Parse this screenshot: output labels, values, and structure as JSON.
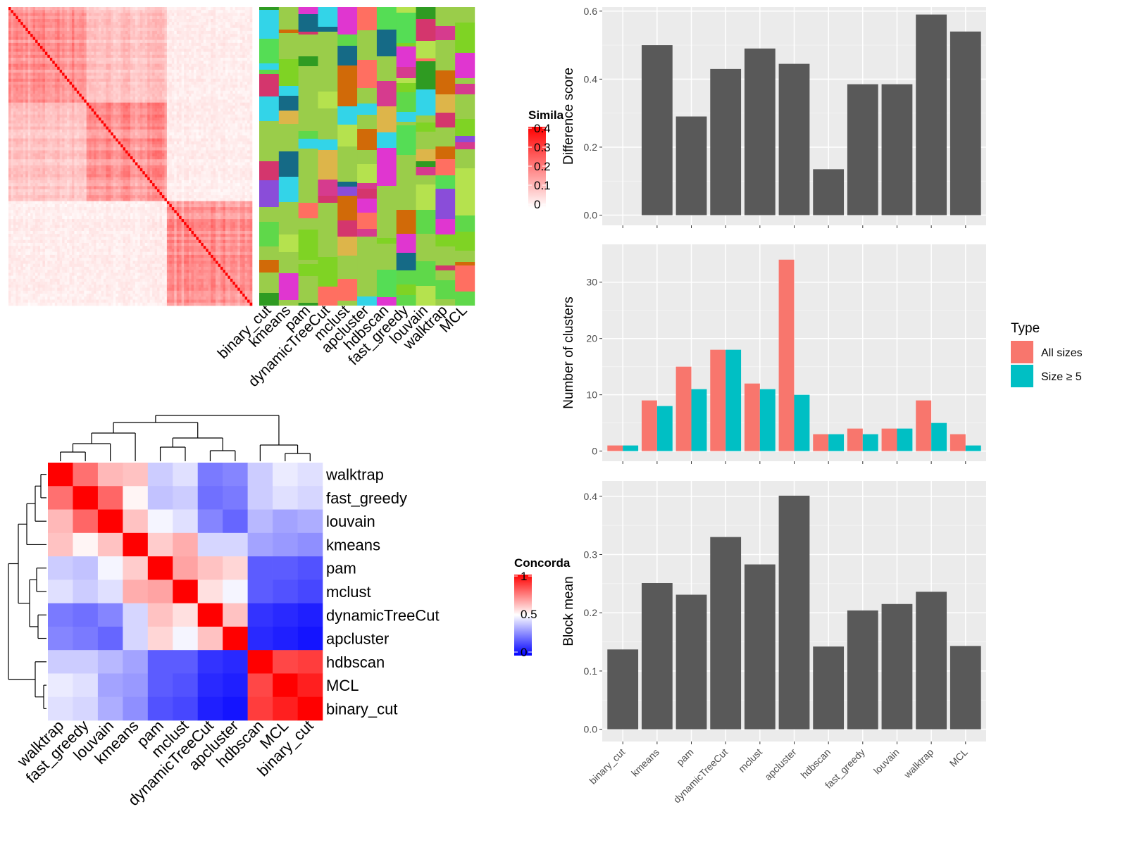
{
  "methods_sim_order": [
    "binary_cut",
    "kmeans",
    "pam",
    "dynamicTreeCut",
    "mclust",
    "apcluster",
    "hdbscan",
    "fast_greedy",
    "louvain",
    "walktrap",
    "MCL"
  ],
  "similarity_legend": {
    "title": "Simila",
    "ticks": [
      "0.4",
      "0.3",
      "0.2",
      "0.1",
      "0"
    ],
    "colors": [
      "#FF0000",
      "#FFFFFF"
    ]
  },
  "concordance": {
    "legend": {
      "title": "Concorda",
      "ticks": [
        "1",
        "0.5",
        "0"
      ],
      "colors": [
        "#FF0000",
        "#FFFFFF",
        "#0000FF"
      ]
    },
    "labels": [
      "walktrap",
      "fast_greedy",
      "louvain",
      "kmeans",
      "pam",
      "mclust",
      "dynamicTreeCut",
      "apcluster",
      "hdbscan",
      "MCL",
      "binary_cut"
    ],
    "matrix": [
      [
        1.0,
        0.78,
        0.64,
        0.62,
        0.4,
        0.44,
        0.24,
        0.26,
        0.4,
        0.46,
        0.44
      ],
      [
        0.78,
        1.0,
        0.8,
        0.52,
        0.38,
        0.4,
        0.22,
        0.24,
        0.4,
        0.44,
        0.42
      ],
      [
        0.64,
        0.8,
        1.0,
        0.62,
        0.48,
        0.44,
        0.26,
        0.2,
        0.36,
        0.32,
        0.34
      ],
      [
        0.62,
        0.52,
        0.62,
        1.0,
        0.6,
        0.66,
        0.42,
        0.42,
        0.32,
        0.3,
        0.28
      ],
      [
        0.4,
        0.38,
        0.48,
        0.6,
        1.0,
        0.68,
        0.62,
        0.58,
        0.18,
        0.18,
        0.16
      ],
      [
        0.44,
        0.4,
        0.44,
        0.66,
        0.68,
        1.0,
        0.56,
        0.48,
        0.18,
        0.16,
        0.14
      ],
      [
        0.24,
        0.22,
        0.26,
        0.42,
        0.62,
        0.56,
        1.0,
        0.62,
        0.1,
        0.08,
        0.06
      ],
      [
        0.26,
        0.24,
        0.2,
        0.42,
        0.58,
        0.48,
        0.62,
        1.0,
        0.08,
        0.06,
        0.04
      ],
      [
        0.4,
        0.4,
        0.36,
        0.32,
        0.18,
        0.18,
        0.1,
        0.08,
        1.0,
        0.86,
        0.88
      ],
      [
        0.46,
        0.44,
        0.32,
        0.3,
        0.18,
        0.16,
        0.08,
        0.06,
        0.86,
        1.0,
        0.94
      ],
      [
        0.44,
        0.42,
        0.34,
        0.28,
        0.16,
        0.14,
        0.06,
        0.04,
        0.88,
        0.94,
        1.0
      ]
    ]
  },
  "chart_data": [
    {
      "type": "bar",
      "categories": [
        "binary_cut",
        "kmeans",
        "pam",
        "dynamicTreeCut",
        "mclust",
        "apcluster",
        "hdbscan",
        "fast_greedy",
        "louvain",
        "walktrap",
        "MCL"
      ],
      "values": [
        0.0,
        0.5,
        0.29,
        0.43,
        0.49,
        0.445,
        0.135,
        0.385,
        0.385,
        0.59,
        0.54
      ],
      "ylabel": "Difference score",
      "ylim": [
        0,
        0.6
      ],
      "yticks": [
        0.0,
        0.2,
        0.4,
        0.6
      ],
      "ytick_labels": [
        "0.0",
        "0.2",
        "0.4",
        "0.6"
      ],
      "bar_color": "#595959",
      "grid": true
    },
    {
      "type": "bar",
      "categories": [
        "binary_cut",
        "kmeans",
        "pam",
        "dynamicTreeCut",
        "mclust",
        "apcluster",
        "hdbscan",
        "fast_greedy",
        "louvain",
        "walktrap",
        "MCL"
      ],
      "series": [
        {
          "name": "All sizes",
          "color": "#F8766D",
          "values": [
            1,
            9,
            15,
            18,
            12,
            34,
            3,
            4,
            4,
            9,
            3
          ]
        },
        {
          "name": "Size ≥ 5",
          "color": "#00BFC4",
          "values": [
            1,
            8,
            11,
            18,
            11,
            10,
            3,
            3,
            4,
            5,
            1
          ]
        }
      ],
      "ylabel": "Number of clusters",
      "ylim": [
        0,
        36
      ],
      "yticks": [
        0,
        10,
        20,
        30
      ],
      "ytick_labels": [
        "0",
        "10",
        "20",
        "30"
      ],
      "legend": {
        "title": "Type",
        "position": "right"
      },
      "grid": true
    },
    {
      "type": "bar",
      "categories": [
        "binary_cut",
        "kmeans",
        "pam",
        "dynamicTreeCut",
        "mclust",
        "apcluster",
        "hdbscan",
        "fast_greedy",
        "louvain",
        "walktrap",
        "MCL"
      ],
      "values": [
        0.137,
        0.251,
        0.231,
        0.33,
        0.283,
        0.401,
        0.142,
        0.204,
        0.215,
        0.236,
        0.143
      ],
      "ylabel": "Block mean",
      "ylim": [
        0,
        0.42
      ],
      "yticks": [
        0.0,
        0.1,
        0.2,
        0.3,
        0.4
      ],
      "ytick_labels": [
        "0.0",
        "0.1",
        "0.2",
        "0.3",
        "0.4"
      ],
      "bar_color": "#595959",
      "grid": true
    }
  ]
}
